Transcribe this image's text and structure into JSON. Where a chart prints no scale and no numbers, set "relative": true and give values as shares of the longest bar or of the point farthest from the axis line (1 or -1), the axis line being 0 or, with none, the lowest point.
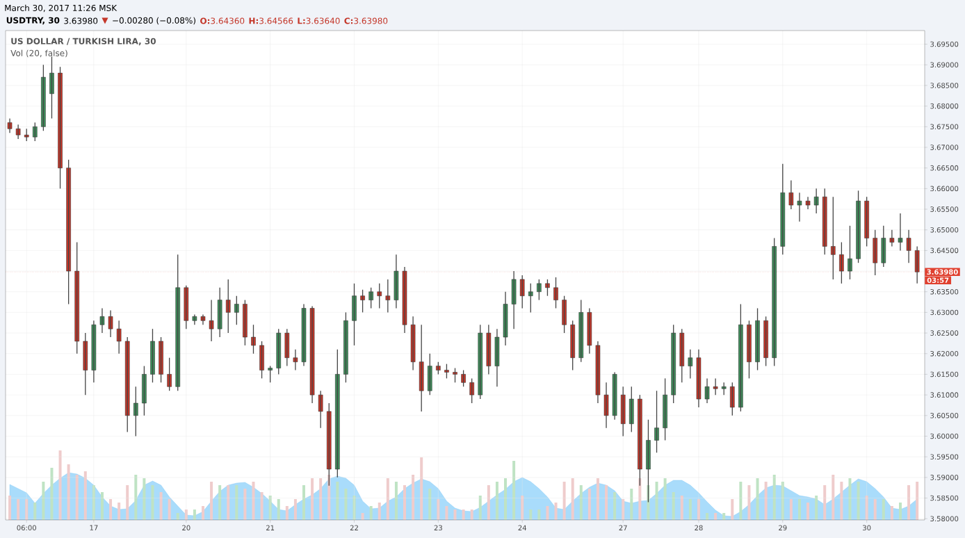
{
  "chart_data": [
    {
      "type": "candlestick",
      "title": "US DOLLAR / TURKISH LIRA, 30",
      "categories": [
        null,
        null,
        "06:00",
        null,
        null,
        null,
        null,
        null,
        null,
        null,
        "17",
        null,
        null,
        null,
        null,
        null,
        null,
        null,
        null,
        null,
        null,
        "20",
        null,
        null,
        null,
        null,
        null,
        null,
        null,
        null,
        null,
        "21",
        null,
        null,
        null,
        null,
        null,
        null,
        null,
        null,
        null,
        "22",
        null,
        null,
        null,
        null,
        null,
        null,
        null,
        null,
        null,
        "23",
        null,
        null,
        null,
        null,
        null,
        null,
        null,
        null,
        null,
        "24",
        null,
        null,
        null,
        null,
        null,
        null,
        null,
        null,
        null,
        null,
        null,
        "27",
        null,
        null,
        null,
        null,
        null,
        null,
        null,
        null,
        "28",
        null,
        null,
        null,
        null,
        null,
        null,
        null,
        null,
        null,
        "29",
        null,
        null,
        null,
        null,
        null,
        null,
        null,
        null,
        null,
        "30",
        null,
        null,
        null,
        null,
        null,
        null
      ],
      "annotations": [
        "March 30, 2017 11:26 MSK",
        "**USDTRY, 30**",
        "3.63980",
        "▼",
        "−0.00280 (−0.08%)",
        "**O:**3.64360",
        "**H:**3.64566",
        "**L:**3.63640",
        "**C:**3.63980",
        "03:57"
      ],
      "ohlc": [
        [
          3.676,
          3.677,
          3.6735,
          3.6745
        ],
        [
          3.6745,
          3.6755,
          3.672,
          3.673
        ],
        [
          3.673,
          3.6745,
          3.6715,
          3.6725
        ],
        [
          3.6725,
          3.676,
          3.6715,
          3.675
        ],
        [
          3.675,
          3.69,
          3.674,
          3.687
        ],
        [
          3.683,
          3.692,
          3.677,
          3.688
        ],
        [
          3.688,
          3.6895,
          3.66,
          3.665
        ],
        [
          3.665,
          3.667,
          3.632,
          3.64
        ],
        [
          3.64,
          3.647,
          3.62,
          3.623
        ],
        [
          3.623,
          3.625,
          3.61,
          3.616
        ],
        [
          3.616,
          3.628,
          3.613,
          3.627
        ],
        [
          3.627,
          3.631,
          3.625,
          3.629
        ],
        [
          3.629,
          3.6305,
          3.624,
          3.626
        ],
        [
          3.626,
          3.628,
          3.62,
          3.623
        ],
        [
          3.623,
          3.624,
          3.601,
          3.605
        ],
        [
          3.605,
          3.612,
          3.6,
          3.608
        ],
        [
          3.608,
          3.617,
          3.605,
          3.615
        ],
        [
          3.615,
          3.626,
          3.613,
          3.623
        ],
        [
          3.623,
          3.624,
          3.613,
          3.615
        ],
        [
          3.615,
          3.619,
          3.611,
          3.612
        ],
        [
          3.612,
          3.644,
          3.611,
          3.636
        ],
        [
          3.636,
          3.6365,
          3.626,
          3.628
        ],
        [
          3.628,
          3.6295,
          3.627,
          3.629
        ],
        [
          3.629,
          3.6295,
          3.627,
          3.628
        ],
        [
          3.628,
          3.633,
          3.623,
          3.626
        ],
        [
          3.626,
          3.636,
          3.624,
          3.633
        ],
        [
          3.633,
          3.638,
          3.625,
          3.63
        ],
        [
          3.63,
          3.634,
          3.627,
          3.632
        ],
        [
          3.632,
          3.633,
          3.622,
          3.624
        ],
        [
          3.624,
          3.627,
          3.62,
          3.622
        ],
        [
          3.622,
          3.623,
          3.614,
          3.616
        ],
        [
          3.616,
          3.617,
          3.613,
          3.6165
        ],
        [
          3.6165,
          3.626,
          3.615,
          3.625
        ],
        [
          3.625,
          3.626,
          3.617,
          3.619
        ],
        [
          3.619,
          3.621,
          3.616,
          3.618
        ],
        [
          3.618,
          3.632,
          3.617,
          3.631
        ],
        [
          3.631,
          3.6315,
          3.608,
          3.61
        ],
        [
          3.61,
          3.611,
          3.602,
          3.606
        ],
        [
          3.606,
          3.608,
          3.588,
          3.592
        ],
        [
          3.592,
          3.621,
          3.59,
          3.615
        ],
        [
          3.615,
          3.63,
          3.613,
          3.628
        ],
        [
          3.628,
          3.637,
          3.622,
          3.634
        ],
        [
          3.634,
          3.6355,
          3.63,
          3.633
        ],
        [
          3.633,
          3.636,
          3.631,
          3.635
        ],
        [
          3.635,
          3.637,
          3.631,
          3.634
        ],
        [
          3.634,
          3.638,
          3.63,
          3.633
        ],
        [
          3.633,
          3.644,
          3.631,
          3.64
        ],
        [
          3.64,
          3.641,
          3.625,
          3.627
        ],
        [
          3.627,
          3.629,
          3.616,
          3.618
        ],
        [
          3.618,
          3.627,
          3.606,
          3.611
        ],
        [
          3.611,
          3.62,
          3.61,
          3.617
        ],
        [
          3.617,
          3.618,
          3.615,
          3.616
        ],
        [
          3.616,
          3.6175,
          3.614,
          3.6155
        ],
        [
          3.6155,
          3.6165,
          3.613,
          3.615
        ],
        [
          3.615,
          3.616,
          3.612,
          3.613
        ],
        [
          3.613,
          3.614,
          3.608,
          3.61
        ],
        [
          3.61,
          3.627,
          3.609,
          3.625
        ],
        [
          3.625,
          3.627,
          3.615,
          3.617
        ],
        [
          3.617,
          3.626,
          3.612,
          3.624
        ],
        [
          3.624,
          3.635,
          3.622,
          3.632
        ],
        [
          3.632,
          3.64,
          3.626,
          3.638
        ],
        [
          3.638,
          3.639,
          3.631,
          3.634
        ],
        [
          3.634,
          3.637,
          3.63,
          3.635
        ],
        [
          3.635,
          3.638,
          3.633,
          3.637
        ],
        [
          3.637,
          3.638,
          3.634,
          3.636
        ],
        [
          3.636,
          3.6385,
          3.631,
          3.633
        ],
        [
          3.633,
          3.634,
          3.625,
          3.627
        ],
        [
          3.627,
          3.628,
          3.616,
          3.619
        ],
        [
          3.619,
          3.633,
          3.618,
          3.63
        ],
        [
          3.63,
          3.631,
          3.62,
          3.622
        ],
        [
          3.622,
          3.623,
          3.608,
          3.61
        ],
        [
          3.61,
          3.613,
          3.602,
          3.605
        ],
        [
          3.605,
          3.6155,
          3.604,
          3.615
        ],
        [
          3.61,
          3.612,
          3.6,
          3.603
        ],
        [
          3.603,
          3.612,
          3.601,
          3.609
        ],
        [
          3.609,
          3.61,
          3.588,
          3.592
        ],
        [
          3.592,
          3.604,
          3.584,
          3.599
        ],
        [
          3.599,
          3.611,
          3.596,
          3.602
        ],
        [
          3.602,
          3.614,
          3.599,
          3.61
        ],
        [
          3.61,
          3.627,
          3.608,
          3.625
        ],
        [
          3.625,
          3.626,
          3.613,
          3.617
        ],
        [
          3.617,
          3.621,
          3.614,
          3.619
        ],
        [
          3.619,
          3.621,
          3.607,
          3.609
        ],
        [
          3.609,
          3.614,
          3.608,
          3.612
        ],
        [
          3.612,
          3.614,
          3.61,
          3.6115
        ],
        [
          3.6115,
          3.613,
          3.61,
          3.612
        ],
        [
          3.612,
          3.613,
          3.605,
          3.607
        ],
        [
          3.607,
          3.632,
          3.606,
          3.627
        ],
        [
          3.627,
          3.628,
          3.614,
          3.618
        ],
        [
          3.618,
          3.631,
          3.616,
          3.628
        ],
        [
          3.628,
          3.629,
          3.617,
          3.619
        ],
        [
          3.619,
          3.648,
          3.617,
          3.646
        ],
        [
          3.646,
          3.666,
          3.644,
          3.659
        ],
        [
          3.659,
          3.662,
          3.655,
          3.656
        ],
        [
          3.656,
          3.659,
          3.652,
          3.657
        ],
        [
          3.657,
          3.658,
          3.655,
          3.656
        ],
        [
          3.656,
          3.66,
          3.654,
          3.658
        ],
        [
          3.658,
          3.66,
          3.644,
          3.646
        ],
        [
          3.646,
          3.658,
          3.638,
          3.644
        ],
        [
          3.644,
          3.647,
          3.637,
          3.64
        ],
        [
          3.64,
          3.651,
          3.638,
          3.643
        ],
        [
          3.643,
          3.6595,
          3.642,
          3.657
        ],
        [
          3.657,
          3.658,
          3.646,
          3.648
        ],
        [
          3.648,
          3.65,
          3.639,
          3.642
        ],
        [
          3.642,
          3.651,
          3.641,
          3.648
        ],
        [
          3.648,
          3.65,
          3.646,
          3.647
        ],
        [
          3.647,
          3.654,
          3.645,
          3.648
        ],
        [
          3.648,
          3.65,
          3.642,
          3.645
        ],
        [
          3.645,
          3.646,
          3.637,
          3.6398
        ]
      ],
      "colors": [
        "#c4372a",
        "#c4372a",
        "#c4372a",
        "#3f8c5a",
        "#3f8c5a",
        "#3f8c5a",
        "#c4372a",
        "#c4372a",
        "#c4372a",
        "#c4372a",
        "#3f8c5a",
        "#3f8c5a",
        "#c4372a",
        "#c4372a",
        "#c4372a",
        "#3f8c5a",
        "#3f8c5a",
        "#3f8c5a",
        "#c4372a",
        "#c4372a",
        "#3f8c5a",
        "#c4372a",
        "#3f8c5a",
        "#c4372a",
        "#c4372a",
        "#3f8c5a",
        "#c4372a",
        "#3f8c5a",
        "#c4372a",
        "#c4372a",
        "#c4372a",
        "#3f8c5a",
        "#3f8c5a",
        "#c4372a",
        "#c4372a",
        "#3f8c5a",
        "#c4372a",
        "#c4372a",
        "#c4372a",
        "#3f8c5a",
        "#3f8c5a",
        "#3f8c5a",
        "#c4372a",
        "#3f8c5a",
        "#c4372a",
        "#c4372a",
        "#3f8c5a",
        "#c4372a",
        "#c4372a",
        "#c4372a",
        "#3f8c5a",
        "#c4372a",
        "#c4372a",
        "#c4372a",
        "#c4372a",
        "#c4372a",
        "#3f8c5a",
        "#c4372a",
        "#3f8c5a",
        "#3f8c5a",
        "#3f8c5a",
        "#c4372a",
        "#3f8c5a",
        "#3f8c5a",
        "#c4372a",
        "#c4372a",
        "#c4372a",
        "#c4372a",
        "#3f8c5a",
        "#c4372a",
        "#c4372a",
        "#c4372a",
        "#3f8c5a",
        "#c4372a",
        "#3f8c5a",
        "#c4372a",
        "#3f8c5a",
        "#3f8c5a",
        "#3f8c5a",
        "#3f8c5a",
        "#c4372a",
        "#3f8c5a",
        "#c4372a",
        "#3f8c5a",
        "#c4372a",
        "#3f8c5a",
        "#c4372a",
        "#3f8c5a",
        "#c4372a",
        "#3f8c5a",
        "#c4372a",
        "#3f8c5a",
        "#3f8c5a",
        "#c4372a",
        "#3f8c5a",
        "#c4372a",
        "#3f8c5a",
        "#c4372a",
        "#c4372a",
        "#c4372a",
        "#3f8c5a",
        "#3f8c5a",
        "#c4372a",
        "#c4372a",
        "#3f8c5a",
        "#c4372a",
        "#3f8c5a",
        "#c4372a",
        "#c4372a"
      ],
      "ylim": [
        3.5797,
        3.6983
      ],
      "yticks": [
        {
          "value": 3.58,
          "label": "3.58000"
        },
        {
          "value": 3.585,
          "label": "3.58500"
        },
        {
          "value": 3.59,
          "label": "3.59000"
        },
        {
          "value": 3.595,
          "label": "3.59500"
        },
        {
          "value": 3.6,
          "label": "3.60000"
        },
        {
          "value": 3.605,
          "label": "3.60500"
        },
        {
          "value": 3.61,
          "label": "3.61000"
        },
        {
          "value": 3.615,
          "label": "3.61500"
        },
        {
          "value": 3.62,
          "label": "3.62000"
        },
        {
          "value": 3.625,
          "label": "3.62500"
        },
        {
          "value": 3.63,
          "label": "3.63000"
        },
        {
          "value": 3.635,
          "label": "3.63500"
        },
        {
          "value": 3.64,
          "label": null
        },
        {
          "value": 3.645,
          "label": "3.64500"
        },
        {
          "value": 3.65,
          "label": "3.65000"
        },
        {
          "value": 3.655,
          "label": "3.65500"
        },
        {
          "value": 3.66,
          "label": "3.66000"
        },
        {
          "value": 3.665,
          "label": "3.66500"
        },
        {
          "value": 3.67,
          "label": "3.67000"
        },
        {
          "value": 3.675,
          "label": "3.67500"
        },
        {
          "value": 3.68,
          "label": "3.68000"
        },
        {
          "value": 3.685,
          "label": "3.68500"
        },
        {
          "value": 3.69,
          "label": "3.69000"
        },
        {
          "value": 3.695,
          "label": "3.69500"
        }
      ],
      "grid": true,
      "ref_lines": [
        {
          "axis": "y",
          "value": 3.6398,
          "label": "3.63980",
          "color": "#e0402f",
          "line_style": "dotted"
        }
      ]
    },
    {
      "type": "bar",
      "title": "Vol (20, false)",
      "relative": true,
      "categories": [
        null,
        null,
        null,
        null,
        null,
        null,
        null,
        null,
        null,
        null,
        null,
        null,
        null,
        null,
        null,
        null,
        null,
        null,
        null,
        null,
        null,
        null,
        null,
        null,
        null,
        null,
        null,
        null,
        null,
        null,
        null,
        null,
        null,
        null,
        null,
        null,
        null,
        null,
        null,
        null,
        null,
        null,
        null,
        null,
        null,
        null,
        null,
        null,
        null,
        null,
        null,
        null,
        null,
        null,
        null,
        null,
        null,
        null,
        null,
        null,
        null,
        null,
        null,
        null,
        null,
        null,
        null,
        null,
        null,
        null,
        null,
        null,
        null,
        null,
        null,
        null,
        null,
        null,
        null,
        null,
        null,
        null,
        null,
        null,
        null,
        null,
        null,
        null,
        null,
        null,
        null,
        null,
        null,
        null,
        null,
        null,
        null,
        null,
        null,
        null,
        null,
        null,
        null,
        null,
        null,
        null,
        null,
        null,
        null
      ],
      "series": [
        {
          "type": "area",
          "color": "#a9dcfb",
          "values": [
            0.51,
            0.45,
            0.39,
            0.24,
            0.38,
            0.5,
            0.6,
            0.68,
            0.66,
            0.6,
            0.5,
            0.33,
            0.2,
            0.15,
            0.16,
            0.28,
            0.5,
            0.56,
            0.5,
            0.33,
            0.2,
            0.07,
            0.06,
            0.12,
            0.27,
            0.41,
            0.5,
            0.53,
            0.54,
            0.47,
            0.38,
            0.27,
            0.15,
            0.13,
            0.22,
            0.3,
            0.36,
            0.45,
            0.59,
            0.63,
            0.6,
            0.5,
            0.27,
            0.16,
            0.17,
            0.27,
            0.33,
            0.45,
            0.53,
            0.59,
            0.55,
            0.45,
            0.27,
            0.17,
            0.13,
            0.12,
            0.18,
            0.27,
            0.36,
            0.44,
            0.55,
            0.61,
            0.55,
            0.45,
            0.33,
            0.17,
            0.15,
            0.27,
            0.38,
            0.47,
            0.53,
            0.5,
            0.42,
            0.27,
            0.24,
            0.27,
            0.28,
            0.38,
            0.5,
            0.57,
            0.57,
            0.5,
            0.39,
            0.26,
            0.14,
            0.06,
            0.05,
            0.12,
            0.22,
            0.35,
            0.46,
            0.5,
            0.49,
            0.42,
            0.35,
            0.33,
            0.3,
            0.22,
            0.3,
            0.4,
            0.5,
            0.59,
            0.55,
            0.45,
            0.33,
            0.17,
            0.15,
            0.2,
            0.3
          ]
        },
        {
          "type": "bar",
          "colors": [
            "#efcccc",
            "#efcccc",
            "#efcccc",
            "#bfe3c4",
            "#bfe3c4",
            "#bfe3c4",
            "#efcccc",
            "#efcccc",
            "#efcccc",
            "#efcccc",
            "#bfe3c4",
            "#bfe3c4",
            "#efcccc",
            "#efcccc",
            "#efcccc",
            "#bfe3c4",
            "#bfe3c4",
            "#bfe3c4",
            "#efcccc",
            "#efcccc",
            "#bfe3c4",
            "#efcccc",
            "#bfe3c4",
            "#efcccc",
            "#efcccc",
            "#bfe3c4",
            "#efcccc",
            "#bfe3c4",
            "#efcccc",
            "#efcccc",
            "#efcccc",
            "#bfe3c4",
            "#bfe3c4",
            "#efcccc",
            "#efcccc",
            "#bfe3c4",
            "#efcccc",
            "#efcccc",
            "#efcccc",
            "#bfe3c4",
            "#bfe3c4",
            "#bfe3c4",
            "#efcccc",
            "#bfe3c4",
            "#efcccc",
            "#efcccc",
            "#bfe3c4",
            "#efcccc",
            "#efcccc",
            "#efcccc",
            "#bfe3c4",
            "#efcccc",
            "#efcccc",
            "#efcccc",
            "#efcccc",
            "#efcccc",
            "#bfe3c4",
            "#efcccc",
            "#bfe3c4",
            "#bfe3c4",
            "#bfe3c4",
            "#efcccc",
            "#bfe3c4",
            "#bfe3c4",
            "#efcccc",
            "#efcccc",
            "#efcccc",
            "#efcccc",
            "#bfe3c4",
            "#efcccc",
            "#efcccc",
            "#efcccc",
            "#bfe3c4",
            "#efcccc",
            "#bfe3c4",
            "#efcccc",
            "#bfe3c4",
            "#bfe3c4",
            "#bfe3c4",
            "#bfe3c4",
            "#efcccc",
            "#bfe3c4",
            "#efcccc",
            "#bfe3c4",
            "#efcccc",
            "#bfe3c4",
            "#efcccc",
            "#bfe3c4",
            "#efcccc",
            "#bfe3c4",
            "#efcccc",
            "#bfe3c4",
            "#bfe3c4",
            "#efcccc",
            "#bfe3c4",
            "#efcccc",
            "#bfe3c4",
            "#efcccc",
            "#efcccc",
            "#efcccc",
            "#bfe3c4",
            "#bfe3c4",
            "#efcccc",
            "#efcccc",
            "#bfe3c4",
            "#efcccc",
            "#bfe3c4",
            "#efcccc",
            "#efcccc"
          ],
          "values": [
            0.35,
            0.3,
            0.3,
            0.25,
            0.55,
            0.75,
            1.0,
            0.8,
            0.65,
            0.7,
            0.5,
            0.4,
            0.3,
            0.25,
            0.5,
            0.65,
            0.6,
            0.5,
            0.4,
            0.3,
            0.1,
            0.15,
            0.15,
            0.2,
            0.55,
            0.5,
            0.5,
            0.5,
            0.45,
            0.55,
            0.4,
            0.35,
            0.3,
            0.2,
            0.3,
            0.5,
            0.6,
            0.6,
            0.65,
            0.55,
            0.45,
            0.35,
            0.1,
            0.2,
            0.25,
            0.6,
            0.55,
            0.5,
            0.65,
            0.9,
            0.45,
            0.3,
            0.2,
            0.15,
            0.15,
            0.15,
            0.35,
            0.5,
            0.55,
            0.6,
            0.85,
            0.35,
            0.15,
            0.15,
            0.2,
            0.25,
            0.55,
            0.6,
            0.5,
            0.45,
            0.6,
            0.5,
            0.4,
            0.3,
            0.45,
            0.6,
            0.5,
            0.55,
            0.6,
            0.4,
            0.35,
            0.3,
            0.3,
            0.1,
            0.1,
            0.1,
            0.3,
            0.55,
            0.5,
            0.6,
            0.55,
            0.65,
            0.55,
            0.3,
            0.3,
            0.25,
            0.35,
            0.5,
            0.65,
            0.55,
            0.6,
            0.55,
            0.35,
            0.3,
            0.3,
            0.2,
            0.25,
            0.5,
            0.55
          ]
        }
      ]
    }
  ]
}
